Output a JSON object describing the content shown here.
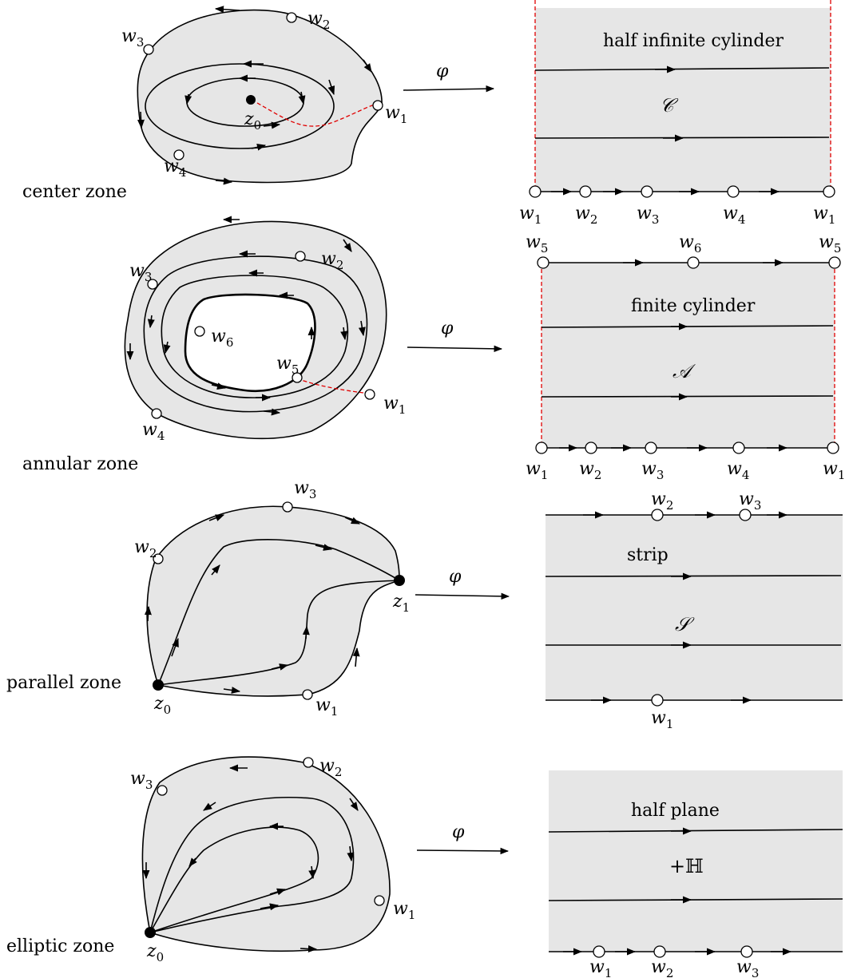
{
  "map_symbol": "φ",
  "zones": [
    {
      "name": "center zone",
      "target": "half infinite cylinder",
      "symbol": "𝒞",
      "left_points": [
        "w1",
        "w2",
        "w3",
        "w4"
      ],
      "left_special": [
        "z0"
      ],
      "right_bottom": [
        "w1",
        "w2",
        "w3",
        "w4",
        "w1"
      ]
    },
    {
      "name": "annular zone",
      "target": "finite cylinder",
      "symbol": "𝒜",
      "left_points": [
        "w1",
        "w2",
        "w3",
        "w4",
        "w5",
        "w6"
      ],
      "right_top": [
        "w5",
        "w6",
        "w5"
      ],
      "right_bottom": [
        "w1",
        "w2",
        "w3",
        "w4",
        "w1"
      ]
    },
    {
      "name": "parallel zone",
      "target": "strip",
      "symbol": "𝒮",
      "left_points": [
        "w1",
        "w2",
        "w3"
      ],
      "left_special": [
        "z0",
        "z1"
      ],
      "right_top": [
        "w2",
        "w3"
      ],
      "right_bottom": [
        "w1"
      ]
    },
    {
      "name": "elliptic zone",
      "target": "half plane",
      "symbol": "+ℍ",
      "left_points": [
        "w1",
        "w2",
        "w3"
      ],
      "left_special": [
        "z0"
      ],
      "right_bottom": [
        "w1",
        "w2",
        "w3"
      ]
    }
  ]
}
